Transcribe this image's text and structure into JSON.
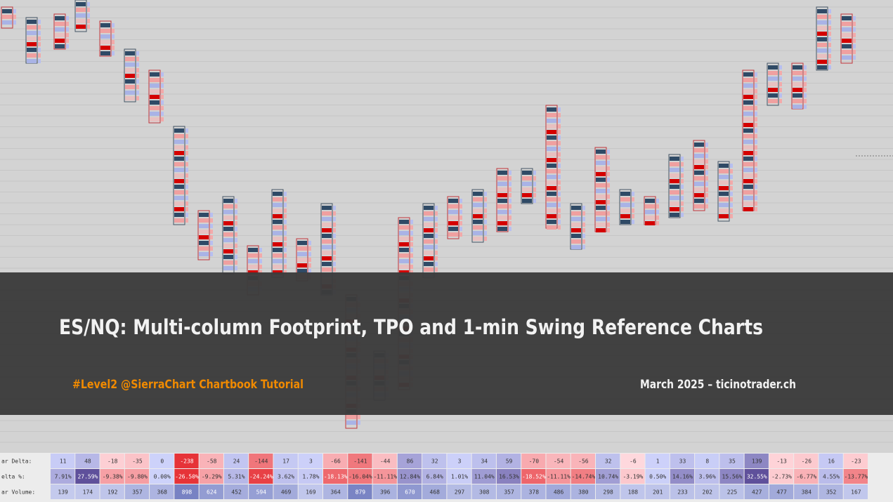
{
  "banner": {
    "title": "ES/NQ: Multi-column Footprint, TPO and 1-min Swing Reference Charts",
    "subtitle": "#Level2 @SierraChart Chartbook Tutorial",
    "byline": "March 2025 – ticinotrader.ch"
  },
  "table": {
    "row_labels": [
      "ar Delta:",
      "elta %:",
      "ar Volume:"
    ],
    "bar_delta": [
      11,
      48,
      -18,
      -35,
      0,
      -238,
      -58,
      24,
      -144,
      17,
      3,
      -66,
      -141,
      -44,
      86,
      32,
      3,
      34,
      59,
      -70,
      -54,
      -56,
      32,
      -6,
      1,
      33,
      8,
      35,
      139,
      -13,
      -26,
      16,
      -23
    ],
    "delta_pct": [
      "7.91%",
      "27.59%",
      "-9.38%",
      "-9.80%",
      "0.00%",
      "-26.50%",
      "-9.29%",
      "5.31%",
      "-24.24%",
      "3.62%",
      "1.78%",
      "-18.13%",
      "-16.04%",
      "-11.11%",
      "12.84%",
      "6.84%",
      "1.01%",
      "11.04%",
      "16.53%",
      "-18.52%",
      "-11.11%",
      "-14.74%",
      "10.74%",
      "-3.19%",
      "0.50%",
      "14.16%",
      "3.96%",
      "15.56%",
      "32.55%",
      "-2.73%",
      "-6.77%",
      "4.55%",
      "-13.77%"
    ],
    "bar_volume": [
      139,
      174,
      192,
      357,
      368,
      898,
      624,
      452,
      594,
      469,
      169,
      364,
      879,
      396,
      670,
      468,
      297,
      308,
      357,
      378,
      486,
      380,
      298,
      188,
      201,
      233,
      202,
      225,
      427,
      477,
      384,
      352,
      167
    ]
  }
}
